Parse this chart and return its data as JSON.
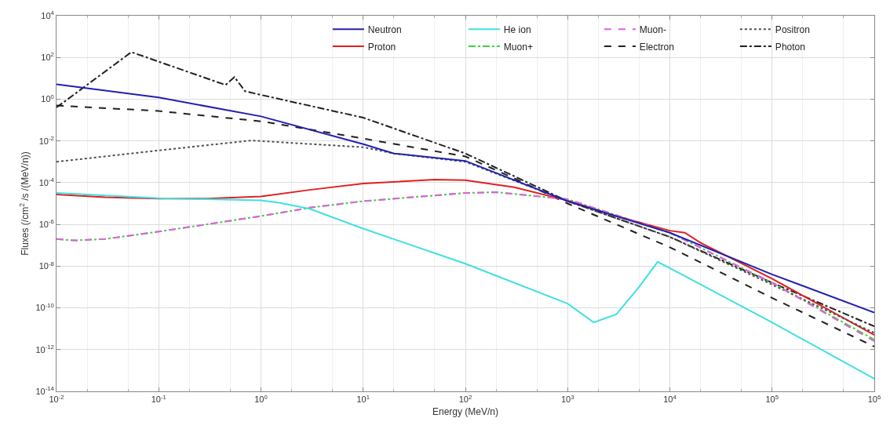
{
  "chart_data": {
    "type": "line",
    "xlabel": "Energy (MeV/n)",
    "ylabel": "Fluxes (/cm$^{2}$ /s /(MeV/n))",
    "log": "xy",
    "grid": true,
    "legend": "top right",
    "xlim": [
      0.01,
      1000000
    ],
    "ylim": [
      1e-14,
      10000
    ],
    "xticks": [
      {
        "value": 0.01,
        "label": "10$^{-2}$"
      },
      {
        "value": 0.1,
        "label": "10$^{-1}$"
      },
      {
        "value": 1,
        "label": "10$^{0}$"
      },
      {
        "value": 10,
        "label": "10$^{1}$"
      },
      {
        "value": 100,
        "label": "10$^{2}$"
      },
      {
        "value": 1000,
        "label": "10$^{3}$"
      },
      {
        "value": 10000,
        "label": "10$^{4}$"
      },
      {
        "value": 100000,
        "label": "10$^{5}$"
      },
      {
        "value": 1000000,
        "label": "10$^{6}$"
      }
    ],
    "yticks": [
      {
        "value": 1e-14,
        "label": "10$^{-14}$"
      },
      {
        "value": 1e-12,
        "label": "10$^{-12}$"
      },
      {
        "value": 1e-10,
        "label": "10$^{-10}$"
      },
      {
        "value": 1e-08,
        "label": "10$^{-8}$"
      },
      {
        "value": 1e-06,
        "label": "10$^{-6}$"
      },
      {
        "value": 0.0001,
        "label": "10$^{-4}$"
      },
      {
        "value": 0.01,
        "label": "10$^{-2}$"
      },
      {
        "value": 1,
        "label": "10$^{0}$"
      },
      {
        "value": 100,
        "label": "10$^{2}$"
      },
      {
        "value": 10000,
        "label": "10$^{4}$"
      }
    ],
    "series": [
      {
        "name": "Neutron",
        "color": "#2020b0",
        "line_style": "solid",
        "x": [
          0.01,
          0.1,
          1,
          10,
          20,
          100,
          1000,
          10000,
          100000,
          1000000
        ],
        "values": [
          5.2,
          1.2,
          0.15,
          0.007,
          0.0025,
          0.0011,
          1.3e-05,
          4e-07,
          4e-09,
          6e-11
        ]
      },
      {
        "name": "He ion",
        "color": "#40e0e0",
        "line_style": "solid",
        "x": [
          0.01,
          0.1,
          1,
          1.5,
          3,
          10,
          100,
          1000,
          1800,
          3000,
          5000,
          7600,
          10000,
          100000,
          1000000
        ],
        "values": [
          3.2e-05,
          1.8e-05,
          1.4e-05,
          1.1e-05,
          5.6e-06,
          6.3e-07,
          1.3e-08,
          1.6e-10,
          2e-11,
          5e-11,
          1e-09,
          1.6e-08,
          8e-09,
          2e-11,
          4e-14
        ]
      },
      {
        "name": "Muon-",
        "color": "#e060e0",
        "line_style": "dashed",
        "x": [
          0.01,
          0.015,
          0.03,
          0.1,
          1,
          3,
          10,
          100,
          200,
          1000,
          10000,
          100000,
          1000000
        ],
        "values": [
          2e-07,
          1.7e-07,
          2e-07,
          4.5e-07,
          2.5e-06,
          6.3e-06,
          1.3e-05,
          3.2e-05,
          3.5e-05,
          1.6e-05,
          4e-07,
          1.6e-09,
          2.5e-12
        ]
      },
      {
        "name": "Positron",
        "color": "#505050",
        "line_style": "dotted",
        "x": [
          0.01,
          0.1,
          0.8,
          10,
          20,
          100,
          1000,
          10000,
          100000,
          1000000
        ],
        "values": [
          0.001,
          0.0035,
          0.0105,
          0.005,
          0.0025,
          0.001,
          1.3e-05,
          2.5e-07,
          1.3e-09,
          6.3e-12
        ]
      },
      {
        "name": "Proton",
        "color": "#e02020",
        "line_style": "solid",
        "x": [
          0.01,
          0.03,
          0.1,
          0.3,
          1,
          3,
          10,
          50,
          100,
          300,
          1000,
          3000,
          10000,
          14000,
          20000,
          100000,
          1000000
        ],
        "values": [
          2.7e-05,
          2e-05,
          1.7e-05,
          1.7e-05,
          2.2e-05,
          4.5e-05,
          9e-05,
          0.00014,
          0.00013,
          6e-05,
          1.4e-05,
          2.5e-06,
          5e-07,
          4e-07,
          1.3e-07,
          2.5e-09,
          5e-12
        ]
      },
      {
        "name": "Muon+",
        "color": "#40d040",
        "line_style": "dashdot",
        "x": [
          0.01,
          0.015,
          0.03,
          0.1,
          1,
          3,
          10,
          100,
          200,
          1000,
          10000,
          100000,
          1000000
        ],
        "values": [
          2e-07,
          1.7e-07,
          2e-07,
          4.5e-07,
          2.5e-06,
          6.3e-06,
          1.3e-05,
          3.2e-05,
          3.5e-05,
          1.6e-05,
          4e-07,
          1.6e-09,
          3e-12
        ]
      },
      {
        "name": "Electron",
        "color": "#202020",
        "line_style": "dashed",
        "x": [
          0.01,
          0.1,
          1,
          10,
          100,
          300,
          1000,
          10000,
          100000,
          1000000
        ],
        "values": [
          0.5,
          0.27,
          0.087,
          0.013,
          0.0018,
          0.00016,
          1e-05,
          8e-08,
          3e-10,
          1.4e-12
        ]
      },
      {
        "name": "Photon",
        "color": "#202020",
        "line_style": "dashdot",
        "x": [
          0.01,
          0.054,
          0.45,
          0.55,
          0.7,
          1,
          10,
          100,
          1000,
          10000,
          100000,
          1000000
        ],
        "values": [
          0.4,
          180,
          4.8,
          11.5,
          2.4,
          1.6,
          0.13,
          0.0025,
          1.3e-05,
          2.5e-07,
          1.6e-09,
          1.3e-11
        ]
      }
    ]
  }
}
